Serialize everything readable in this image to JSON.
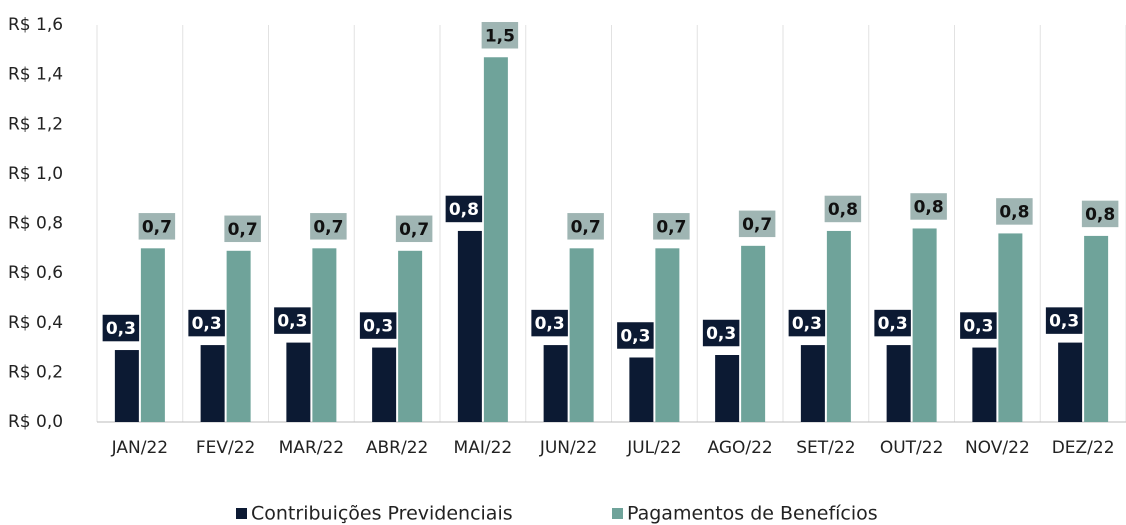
{
  "chart_data": {
    "type": "bar",
    "categories": [
      "JAN/22",
      "FEV/22",
      "MAR/22",
      "ABR/22",
      "MAI/22",
      "JUN/22",
      "JUL/22",
      "AGO/22",
      "SET/22",
      "OUT/22",
      "NOV/22",
      "DEZ/22"
    ],
    "series": [
      {
        "name": "Contribuições Previdenciais",
        "color": "#0c1a33",
        "values": [
          0.29,
          0.31,
          0.32,
          0.3,
          0.77,
          0.31,
          0.26,
          0.27,
          0.31,
          0.31,
          0.3,
          0.32
        ],
        "value_labels": [
          "0,3",
          "0,3",
          "0,3",
          "0,3",
          "0,8",
          "0,3",
          "0,3",
          "0,3",
          "0,3",
          "0,3",
          "0,3",
          "0,3"
        ]
      },
      {
        "name": "Pagamentos de Benefícios",
        "color": "#6fa39a",
        "values": [
          0.7,
          0.69,
          0.7,
          0.69,
          1.47,
          0.7,
          0.7,
          0.71,
          0.77,
          0.78,
          0.76,
          0.75
        ],
        "value_labels": [
          "0,7",
          "0,7",
          "0,7",
          "0,7",
          "1,5",
          "0,7",
          "0,7",
          "0,7",
          "0,8",
          "0,8",
          "0,8",
          "0,8"
        ]
      }
    ],
    "ylim": [
      0,
      1.6
    ],
    "yticks": [
      {
        "value": 0,
        "label": "R$ 0,0"
      },
      {
        "value": 0.2,
        "label": "R$ 0,2"
      },
      {
        "value": 0.4,
        "label": "R$ 0,4"
      },
      {
        "value": 0.6,
        "label": "R$ 0,6"
      },
      {
        "value": 0.8,
        "label": "R$ 0,8"
      },
      {
        "value": 1.0,
        "label": "R$ 1,0"
      },
      {
        "value": 1.2,
        "label": "R$ 1,2"
      },
      {
        "value": 1.4,
        "label": "R$ 1,4"
      },
      {
        "value": 1.6,
        "label": "R$ 1,6"
      }
    ],
    "legend": "bottom"
  }
}
